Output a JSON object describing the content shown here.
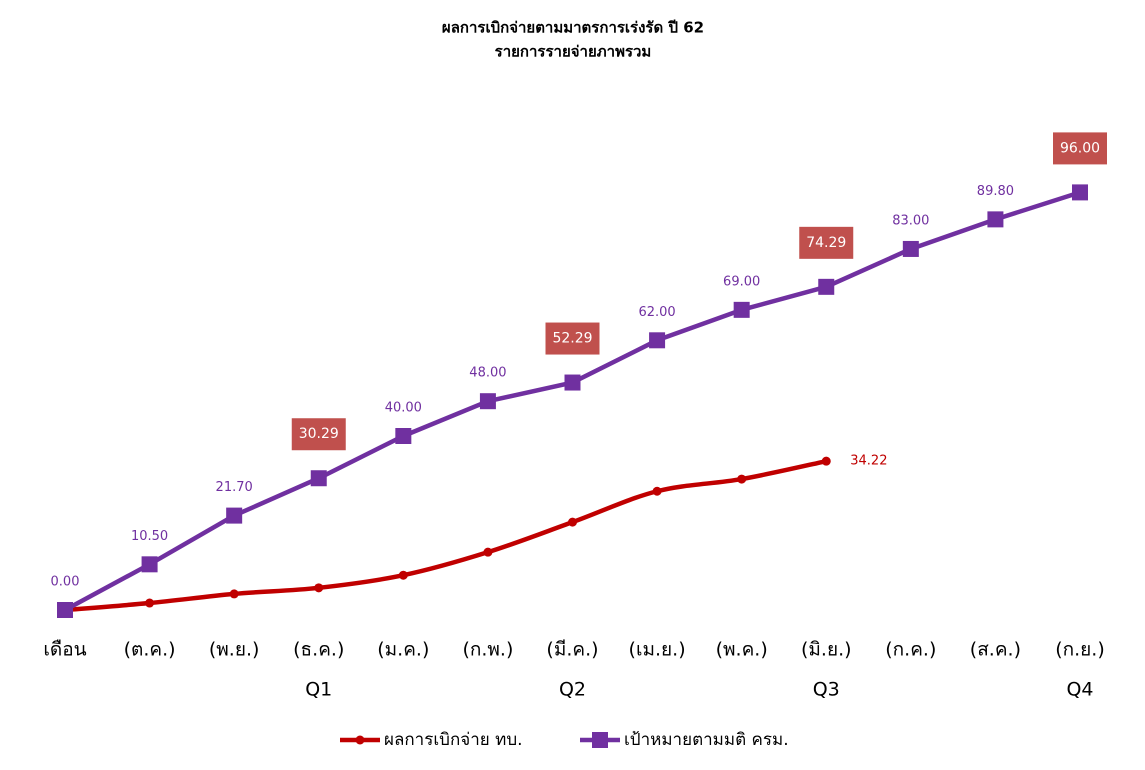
{
  "chart_data": {
    "type": "line",
    "title": "ผลการเบิกจ่ายตามมาตรการเร่งรัด ปี 62",
    "subtitle": "รายการรายจ่ายภาพรวม",
    "categories": [
      "เดือน",
      "(ต.ค.)",
      "(พ.ย.)",
      "(ธ.ค.)",
      "(ม.ค.)",
      "(ก.พ.)",
      "(มี.ค.)",
      "(เม.ย.)",
      "(พ.ค.)",
      "(มิ.ย.)",
      "(ก.ค.)",
      "(ส.ค.)",
      "(ก.ย.)"
    ],
    "quarters": [
      null,
      null,
      null,
      "Q1",
      null,
      null,
      "Q2",
      null,
      null,
      "Q3",
      null,
      null,
      "Q4"
    ],
    "ylim": [
      0,
      100
    ],
    "series": [
      {
        "name": "ผลการเบิกจ่าย ทบ.",
        "color": "#c00000",
        "smooth": true,
        "values": [
          0,
          1.6,
          3.7,
          5.1,
          8.0,
          13.3,
          20.2,
          27.3,
          30.1,
          34.22,
          null,
          null,
          null
        ],
        "value_labels": [
          null,
          null,
          null,
          null,
          null,
          null,
          null,
          null,
          null,
          "34.22",
          null,
          null,
          null
        ]
      },
      {
        "name": "เป้าหมายตามมติ ครม.",
        "color": "#7030a0",
        "smooth": false,
        "values": [
          0,
          10.5,
          21.7,
          30.29,
          40,
          48,
          52.29,
          62,
          69,
          74.29,
          83,
          89.8,
          96
        ],
        "value_labels": [
          "0.00",
          "10.50",
          "21.70",
          "30.29",
          "40.00",
          "48.00",
          "52.29",
          "62.00",
          "69.00",
          "74.29",
          "83.00",
          "89.80",
          "96.00"
        ]
      }
    ]
  }
}
